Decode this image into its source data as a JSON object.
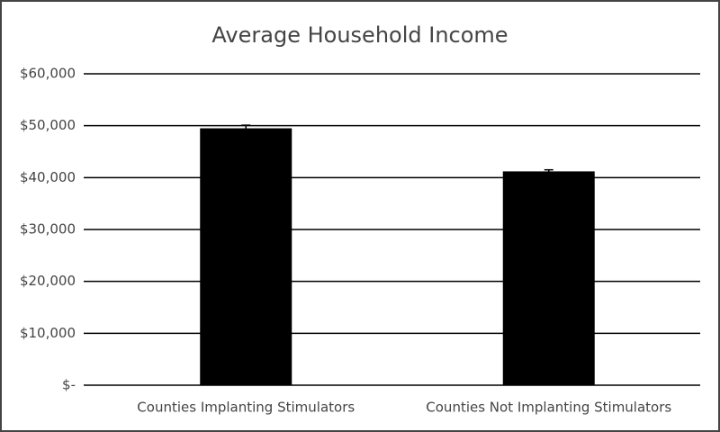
{
  "chart_data": {
    "type": "bar",
    "title": "Average Household Income",
    "categories": [
      "Counties Implanting Stimulators",
      "Counties Not Implanting Stimulators"
    ],
    "values": [
      49500,
      41200
    ],
    "errors": [
      600,
      300
    ],
    "color": "#000000",
    "ylim": [
      0,
      60000
    ],
    "yticks": [
      {
        "value": 0,
        "label": "$-"
      },
      {
        "value": 10000,
        "label": "$10,000"
      },
      {
        "value": 20000,
        "label": "$20,000"
      },
      {
        "value": 30000,
        "label": "$30,000"
      },
      {
        "value": 40000,
        "label": "$40,000"
      },
      {
        "value": 50000,
        "label": "$50,000"
      },
      {
        "value": 60000,
        "label": "$60,000"
      }
    ],
    "grid": true
  }
}
